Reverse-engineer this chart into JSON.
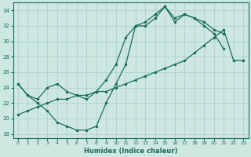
{
  "xlabel": "Humidex (Indice chaleur)",
  "ylabel": "",
  "bg_color": "#cce8e0",
  "grid_color": "#aacccc",
  "line_color": "#1a6b5a",
  "xlim": [
    -0.5,
    23.5
  ],
  "ylim": [
    17.5,
    35.0
  ],
  "xticks": [
    0,
    1,
    2,
    3,
    4,
    5,
    6,
    7,
    8,
    9,
    10,
    11,
    12,
    13,
    14,
    15,
    16,
    17,
    18,
    19,
    20,
    21,
    22,
    23
  ],
  "yticks": [
    18,
    20,
    22,
    24,
    26,
    28,
    30,
    32,
    34
  ],
  "line1_x": [
    0,
    1,
    2,
    3,
    4,
    5,
    6,
    7,
    8,
    9,
    10,
    11,
    12,
    13,
    14,
    15,
    16,
    17,
    18,
    19,
    20,
    21
  ],
  "line1_y": [
    24.5,
    23.0,
    22.0,
    21.0,
    19.5,
    19.0,
    18.5,
    18.5,
    19.0,
    22.0,
    24.5,
    27.0,
    32.0,
    32.0,
    33.0,
    34.5,
    33.0,
    33.5,
    33.0,
    32.0,
    31.0,
    29.0
  ],
  "line2_x": [
    0,
    1,
    2,
    3,
    4,
    5,
    6,
    7,
    8,
    9,
    10,
    11,
    12,
    13,
    14,
    15,
    16,
    17,
    18,
    19,
    20,
    21
  ],
  "line2_y": [
    24.5,
    23.0,
    22.5,
    24.0,
    24.5,
    23.5,
    23.0,
    22.5,
    23.5,
    25.0,
    27.0,
    30.5,
    32.0,
    32.5,
    33.5,
    34.5,
    32.5,
    33.5,
    33.0,
    32.5,
    31.5,
    31.0
  ],
  "line3_x": [
    0,
    1,
    2,
    3,
    4,
    5,
    6,
    7,
    8,
    9,
    10,
    11,
    12,
    13,
    14,
    15,
    16,
    17,
    18,
    19,
    20,
    21,
    22,
    23
  ],
  "line3_y": [
    20.5,
    21.0,
    21.5,
    22.0,
    22.5,
    22.5,
    23.0,
    23.0,
    23.5,
    23.5,
    24.0,
    24.5,
    25.0,
    25.5,
    26.0,
    26.5,
    27.0,
    27.5,
    28.5,
    29.5,
    30.5,
    31.5,
    27.5,
    27.5
  ]
}
